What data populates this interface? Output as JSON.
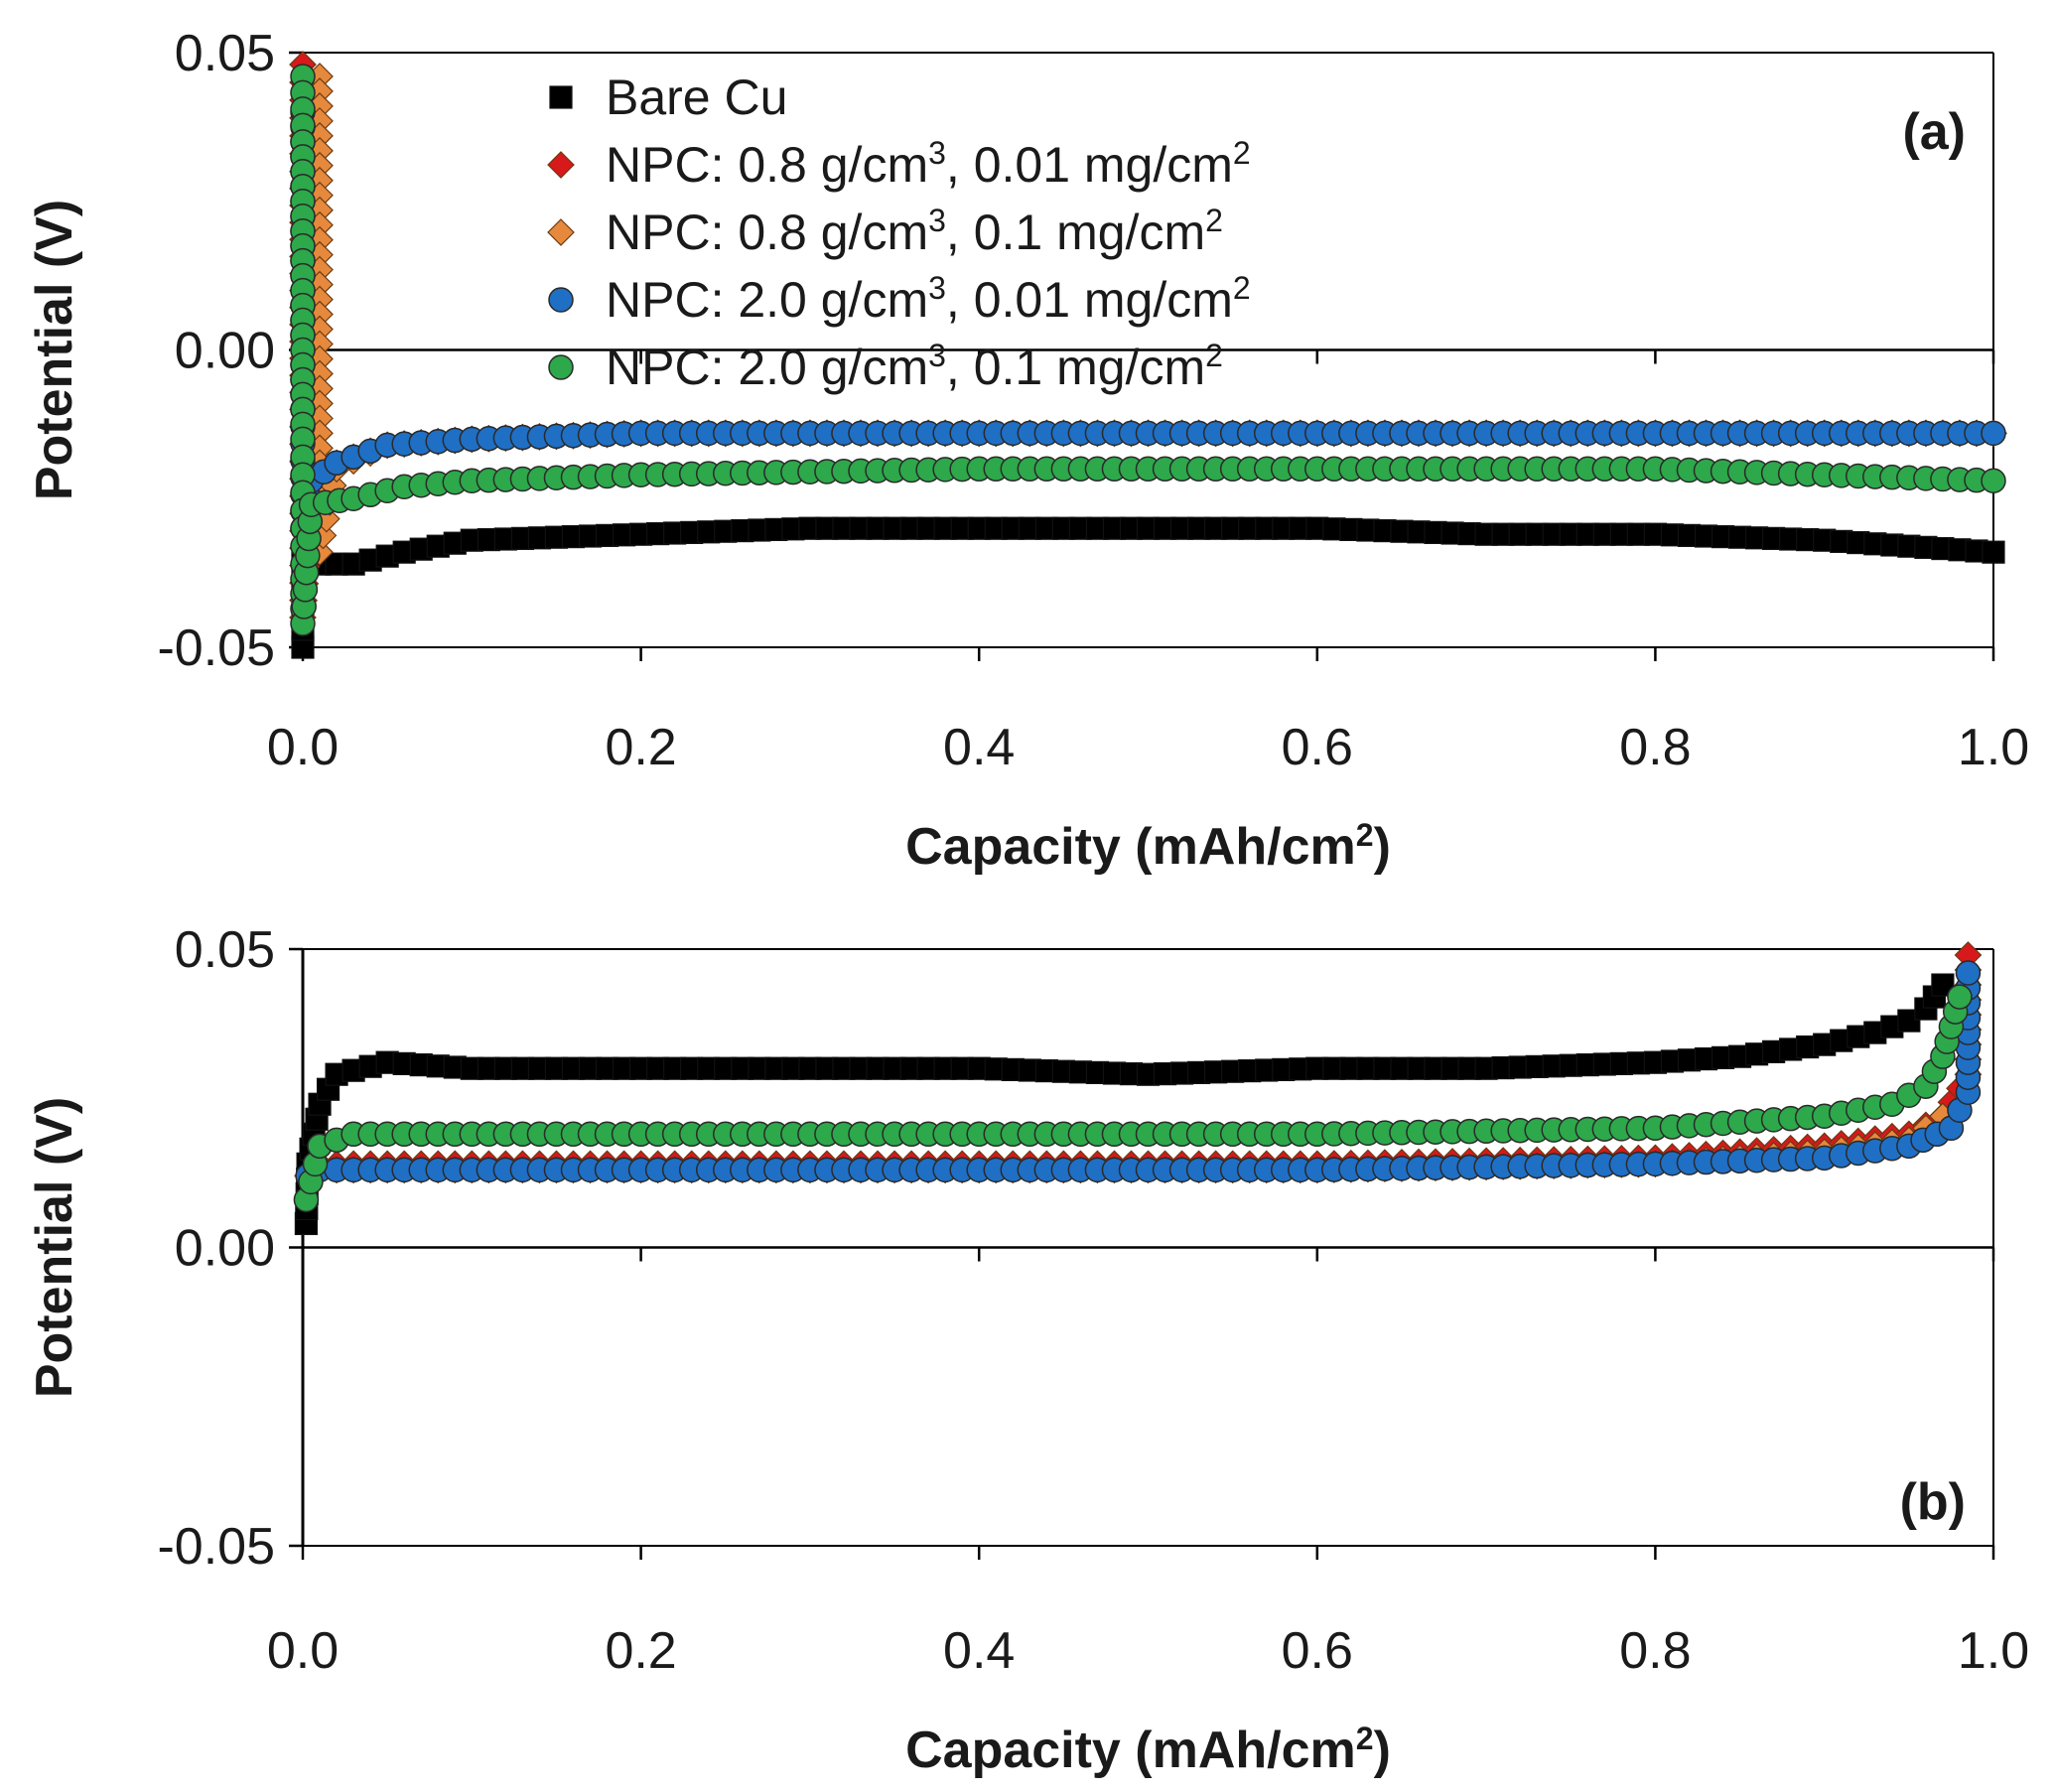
{
  "chart_data": [
    {
      "type": "scatter",
      "panel_label": "(a)",
      "xlabel": "Capacity (mAh/cm²)",
      "ylabel": "Potential (V)",
      "xlim": [
        0.0,
        1.0
      ],
      "ylim": [
        -0.05,
        0.05
      ],
      "xticks": [
        "0.0",
        "0.2",
        "0.4",
        "0.6",
        "0.8",
        "1.0"
      ],
      "yticks": [
        "0.05",
        "0.00",
        "-0.05"
      ],
      "legend_position": "top-left",
      "series": [
        {
          "name": "Bare Cu",
          "marker": "square",
          "color": "#000000",
          "points": [
            [
              0.0,
              -0.05
            ],
            [
              0.0,
              -0.035
            ],
            [
              0.003,
              -0.032
            ],
            [
              0.01,
              -0.036
            ],
            [
              0.03,
              -0.036
            ],
            [
              0.06,
              -0.034
            ],
            [
              0.1,
              -0.032
            ],
            [
              0.2,
              -0.031
            ],
            [
              0.3,
              -0.03
            ],
            [
              0.4,
              -0.03
            ],
            [
              0.5,
              -0.03
            ],
            [
              0.6,
              -0.03
            ],
            [
              0.7,
              -0.031
            ],
            [
              0.8,
              -0.031
            ],
            [
              0.9,
              -0.032
            ],
            [
              0.95,
              -0.033
            ],
            [
              1.0,
              -0.034
            ]
          ]
        },
        {
          "name": "NPC: 0.8 g/cm³, 0.01 mg/cm²",
          "marker": "diamond",
          "color": "#d7191c",
          "points": [
            [
              0.0,
              0.048
            ],
            [
              0.0,
              0.03
            ],
            [
              0.0,
              0.01
            ],
            [
              0.0,
              -0.01
            ],
            [
              0.0,
              -0.045
            ],
            [
              0.005,
              -0.025
            ],
            [
              0.02,
              -0.019
            ],
            [
              0.05,
              -0.016
            ],
            [
              0.1,
              -0.015
            ],
            [
              0.2,
              -0.014
            ],
            [
              0.4,
              -0.014
            ],
            [
              0.6,
              -0.014
            ],
            [
              0.8,
              -0.014
            ],
            [
              1.0,
              -0.014
            ]
          ]
        },
        {
          "name": "NPC: 0.8 g/cm³, 0.1 mg/cm²",
          "marker": "diamond",
          "color": "#e6893c",
          "points": [
            [
              0.01,
              0.046
            ],
            [
              0.01,
              0.036
            ],
            [
              0.01,
              0.026
            ],
            [
              0.01,
              0.016
            ],
            [
              0.01,
              0.006
            ],
            [
              0.01,
              -0.004
            ],
            [
              0.01,
              -0.014
            ],
            [
              0.01,
              -0.024
            ],
            [
              0.01,
              -0.034
            ],
            [
              0.02,
              -0.02
            ],
            [
              0.05,
              -0.016
            ],
            [
              0.1,
              -0.015
            ],
            [
              0.2,
              -0.014
            ],
            [
              0.4,
              -0.014
            ],
            [
              0.6,
              -0.014
            ],
            [
              0.8,
              -0.014
            ],
            [
              1.0,
              -0.014
            ]
          ]
        },
        {
          "name": "NPC: 2.0 g/cm³, 0.01 mg/cm²",
          "marker": "circle",
          "color": "#1f6fc5",
          "points": [
            [
              0.0,
              0.04
            ],
            [
              0.0,
              0.03
            ],
            [
              0.0,
              0.02
            ],
            [
              0.0,
              0.01
            ],
            [
              0.0,
              0.0
            ],
            [
              0.0,
              -0.01
            ],
            [
              0.0,
              -0.03
            ],
            [
              0.005,
              -0.022
            ],
            [
              0.02,
              -0.019
            ],
            [
              0.05,
              -0.016
            ],
            [
              0.1,
              -0.015
            ],
            [
              0.2,
              -0.014
            ],
            [
              0.4,
              -0.014
            ],
            [
              0.6,
              -0.014
            ],
            [
              0.8,
              -0.014
            ],
            [
              0.9,
              -0.014
            ],
            [
              1.0,
              -0.014
            ]
          ]
        },
        {
          "name": "NPC: 2.0 g/cm³, 0.1 mg/cm²",
          "marker": "circle",
          "color": "#2da84a",
          "points": [
            [
              0.0,
              0.046
            ],
            [
              0.0,
              0.035
            ],
            [
              0.0,
              0.025
            ],
            [
              0.0,
              0.015
            ],
            [
              0.0,
              0.005
            ],
            [
              0.0,
              -0.005
            ],
            [
              0.0,
              -0.015
            ],
            [
              0.0,
              -0.036
            ],
            [
              0.0,
              -0.046
            ],
            [
              0.005,
              -0.026
            ],
            [
              0.03,
              -0.025
            ],
            [
              0.06,
              -0.023
            ],
            [
              0.1,
              -0.022
            ],
            [
              0.2,
              -0.021
            ],
            [
              0.4,
              -0.02
            ],
            [
              0.6,
              -0.02
            ],
            [
              0.8,
              -0.02
            ],
            [
              0.9,
              -0.021
            ],
            [
              1.0,
              -0.022
            ]
          ]
        }
      ]
    },
    {
      "type": "scatter",
      "panel_label": "(b)",
      "xlabel": "Capacity (mAh/cm²)",
      "ylabel": "Potential (V)",
      "xlim": [
        0.0,
        1.0
      ],
      "ylim": [
        -0.05,
        0.05
      ],
      "xticks": [
        "0.0",
        "0.2",
        "0.4",
        "0.6",
        "0.8",
        "1.0"
      ],
      "yticks": [
        "0.05",
        "0.00",
        "-0.05"
      ],
      "series": [
        {
          "name": "Bare Cu",
          "marker": "square",
          "color": "#000000",
          "points": [
            [
              0.002,
              0.004
            ],
            [
              0.003,
              0.014
            ],
            [
              0.01,
              0.024
            ],
            [
              0.02,
              0.029
            ],
            [
              0.05,
              0.031
            ],
            [
              0.1,
              0.03
            ],
            [
              0.2,
              0.03
            ],
            [
              0.3,
              0.03
            ],
            [
              0.4,
              0.03
            ],
            [
              0.5,
              0.029
            ],
            [
              0.6,
              0.03
            ],
            [
              0.7,
              0.03
            ],
            [
              0.8,
              0.031
            ],
            [
              0.85,
              0.032
            ],
            [
              0.9,
              0.034
            ],
            [
              0.93,
              0.036
            ],
            [
              0.95,
              0.038
            ],
            [
              0.96,
              0.04
            ],
            [
              0.97,
              0.044
            ]
          ]
        },
        {
          "name": "NPC: 0.8 g/cm³, 0.01 mg/cm²",
          "marker": "diamond",
          "color": "#d7191c",
          "points": [
            [
              0.003,
              0.012
            ],
            [
              0.01,
              0.014
            ],
            [
              0.05,
              0.014
            ],
            [
              0.2,
              0.014
            ],
            [
              0.4,
              0.014
            ],
            [
              0.6,
              0.014
            ],
            [
              0.8,
              0.015
            ],
            [
              0.9,
              0.017
            ],
            [
              0.95,
              0.019
            ],
            [
              0.97,
              0.022
            ],
            [
              0.985,
              0.029
            ],
            [
              0.985,
              0.039
            ],
            [
              0.985,
              0.049
            ]
          ]
        },
        {
          "name": "NPC: 0.8 g/cm³, 0.1 mg/cm²",
          "marker": "diamond",
          "color": "#e6893c",
          "points": [
            [
              0.003,
              0.012
            ],
            [
              0.01,
              0.013
            ],
            [
              0.05,
              0.013
            ],
            [
              0.2,
              0.013
            ],
            [
              0.4,
              0.013
            ],
            [
              0.6,
              0.013
            ],
            [
              0.8,
              0.014
            ],
            [
              0.9,
              0.016
            ],
            [
              0.95,
              0.018
            ],
            [
              0.97,
              0.022
            ]
          ]
        },
        {
          "name": "NPC: 2.0 g/cm³, 0.01 mg/cm²",
          "marker": "circle",
          "color": "#1f6fc5",
          "points": [
            [
              0.003,
              0.012
            ],
            [
              0.01,
              0.013
            ],
            [
              0.05,
              0.013
            ],
            [
              0.2,
              0.013
            ],
            [
              0.4,
              0.013
            ],
            [
              0.6,
              0.013
            ],
            [
              0.8,
              0.014
            ],
            [
              0.9,
              0.015
            ],
            [
              0.95,
              0.017
            ],
            [
              0.975,
              0.02
            ],
            [
              0.985,
              0.026
            ],
            [
              0.985,
              0.036
            ],
            [
              0.985,
              0.046
            ]
          ]
        },
        {
          "name": "NPC: 2.0 g/cm³, 0.1 mg/cm²",
          "marker": "circle",
          "color": "#2da84a",
          "points": [
            [
              0.002,
              0.008
            ],
            [
              0.01,
              0.017
            ],
            [
              0.03,
              0.019
            ],
            [
              0.1,
              0.019
            ],
            [
              0.2,
              0.019
            ],
            [
              0.4,
              0.019
            ],
            [
              0.6,
              0.019
            ],
            [
              0.8,
              0.02
            ],
            [
              0.9,
              0.022
            ],
            [
              0.94,
              0.024
            ],
            [
              0.96,
              0.027
            ],
            [
              0.97,
              0.032
            ],
            [
              0.98,
              0.042
            ]
          ]
        }
      ]
    }
  ]
}
